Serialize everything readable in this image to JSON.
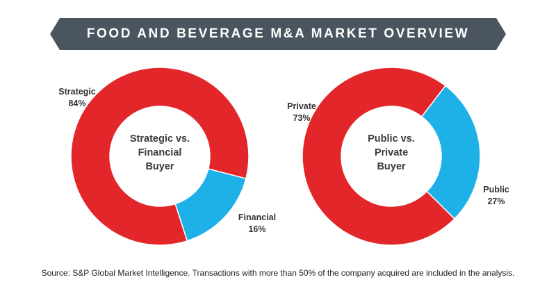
{
  "header": {
    "title": "FOOD AND BEVERAGE M&A MARKET OVERVIEW"
  },
  "colors": {
    "banner": "#4a5560",
    "red": "#e2262a",
    "blue": "#1eb1e7"
  },
  "chart_data": [
    {
      "type": "pie",
      "title": "Strategic vs. Financial Buyer",
      "title_lines": [
        "Strategic vs.",
        "Financial",
        "Buyer"
      ],
      "slices": [
        {
          "name": "Strategic",
          "value": 84,
          "label": "84%",
          "color": "#e2262a"
        },
        {
          "name": "Financial",
          "value": 16,
          "label": "16%",
          "color": "#1eb1e7"
        }
      ]
    },
    {
      "type": "pie",
      "title": "Public vs. Private Buyer",
      "title_lines": [
        "Public vs.",
        "Private",
        "Buyer"
      ],
      "slices": [
        {
          "name": "Private",
          "value": 73,
          "label": "73%",
          "color": "#e2262a"
        },
        {
          "name": "Public",
          "value": 27,
          "label": "27%",
          "color": "#1eb1e7"
        }
      ]
    }
  ],
  "footer": {
    "source": "Source: S&P Global Market Intelligence. Transactions with more than 50% of the company acquired are included in the analysis."
  }
}
